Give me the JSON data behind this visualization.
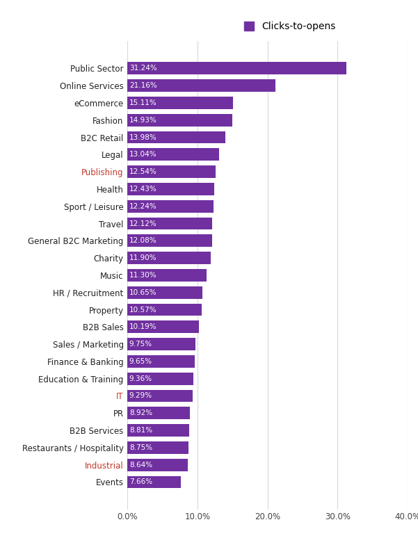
{
  "categories": [
    "Public Sector",
    "Online Services",
    "eCommerce",
    "Fashion",
    "B2C Retail",
    "Legal",
    "Publishing",
    "Health",
    "Sport / Leisure",
    "Travel",
    "General B2C Marketing",
    "Charity",
    "Music",
    "HR / Recruitment",
    "Property",
    "B2B Sales",
    "Sales / Marketing",
    "Finance & Banking",
    "Education & Training",
    "IT",
    "PR",
    "B2B Services",
    "Restaurants / Hospitality",
    "Industrial",
    "Events"
  ],
  "values": [
    31.24,
    21.16,
    15.11,
    14.93,
    13.98,
    13.04,
    12.54,
    12.43,
    12.24,
    12.12,
    12.08,
    11.9,
    11.3,
    10.65,
    10.57,
    10.19,
    9.75,
    9.65,
    9.36,
    9.29,
    8.92,
    8.81,
    8.75,
    8.64,
    7.66
  ],
  "bar_color": "#7030a0",
  "label_color": "#ffffff",
  "title_label": "Clicks-to-opens",
  "legend_color": "#7030a0",
  "xlim": [
    0,
    40
  ],
  "xticks": [
    0,
    10,
    20,
    30,
    40
  ],
  "xtick_labels": [
    "0.0%",
    "10.0%",
    "20.0%",
    "30.0%",
    "40.0%"
  ],
  "background_color": "#ffffff",
  "grid_color": "#d8d8d8",
  "highlight_categories": [
    "Publishing",
    "IT",
    "Industrial"
  ],
  "highlight_color": "#c0392b",
  "bar_height": 0.72,
  "label_fontsize": 7.5,
  "tick_fontsize": 8.5,
  "category_fontsize": 8.5,
  "legend_fontsize": 10,
  "figwidth": 6.01,
  "figheight": 7.84,
  "dpi": 100
}
